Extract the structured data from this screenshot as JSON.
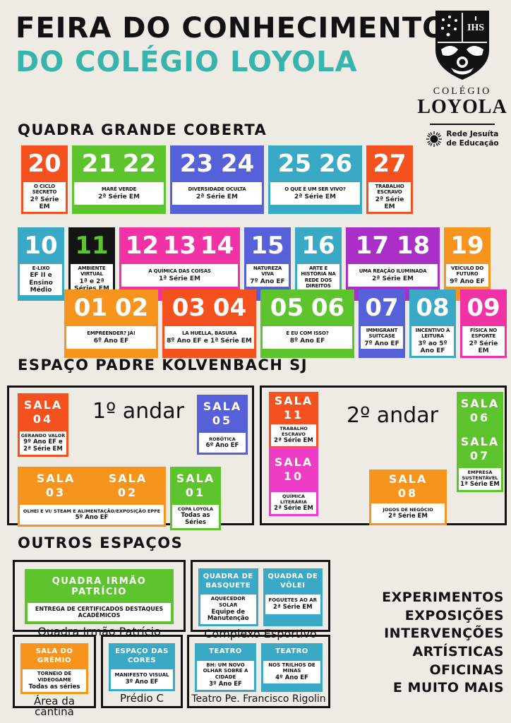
{
  "header": {
    "title1": "FEIRA DO CONHECIMENTO",
    "title2": "DO COLÉGIO LOYOLA",
    "title2_color": "#38b4ac"
  },
  "logo": {
    "ihs": "IHS",
    "school1": "COLÉGIO",
    "school2": "LOYOLA",
    "net1": "Rede Jesuíta",
    "net2": "de Educação"
  },
  "sections": {
    "quadra": "QUADRA GRANDE COBERTA",
    "kolvenbach": "ESPAÇO PADRE KOLVENBACH SJ",
    "outros": "OUTROS ESPAÇOS"
  },
  "quadra": {
    "rows": [
      {
        "stands": [
          {
            "numbers": [
              "20"
            ],
            "title": "O CICLO SECRETO",
            "grade": "2ª Série EM",
            "color": "#f4511e"
          },
          {
            "numbers": [
              "21",
              "22"
            ],
            "title": "MARÉ VERDE",
            "grade": "2ª Série EM",
            "color": "#5ec42d"
          },
          {
            "numbers": [
              "23",
              "24"
            ],
            "title": "DIVERSIDADE OCULTA",
            "grade": "2ª Série EM",
            "color": "#5560d9"
          },
          {
            "numbers": [
              "25",
              "26"
            ],
            "title": "O QUE É UM SER VIVO?",
            "grade": "2ª Série EM",
            "color": "#3aa9c5"
          },
          {
            "numbers": [
              "27"
            ],
            "title": "TRABALHO ESCRAVO",
            "grade": "2ª Série EM",
            "color": "#f4511e"
          }
        ]
      },
      {
        "stands": [
          {
            "numbers": [
              "10"
            ],
            "title": "E-LIXO",
            "grade": "EF II e Ensino Médio",
            "color": "#3aa9c5"
          },
          {
            "numbers": [
              "11"
            ],
            "title": "AMBIENTE VIRTUAL",
            "grade": "1ª e 2ª Séries EM",
            "color": "#141414",
            "num_color": "#5ec42d"
          },
          {
            "numbers": [
              "12",
              "13",
              "14"
            ],
            "title": "A QUÍMICA DAS COISAS",
            "grade": "1ª Série EM",
            "color": "#f032a4"
          },
          {
            "numbers": [
              "15"
            ],
            "title": "NATUREZA VIVA",
            "grade": "7º Ano EF",
            "color": "#5560d9"
          },
          {
            "numbers": [
              "16"
            ],
            "title": "ARTE E HISTÓRIA NA REDE DOS DIREITOS",
            "grade": "8º Ano EF",
            "color": "#3aa9c5"
          },
          {
            "numbers": [
              "17",
              "18"
            ],
            "title": "UMA REAÇÃO ILUMINADA",
            "grade": "2ª Série EM",
            "color": "#a92fc6"
          },
          {
            "numbers": [
              "19"
            ],
            "title": "VEÍCULO DO FUTURO",
            "grade": "9º Ano EF",
            "color": "#f7941d"
          }
        ]
      },
      {
        "stands": [
          {
            "numbers": [
              "01",
              "02"
            ],
            "title": "EMPREENDER? JÁ!",
            "grade": "6º Ano EF",
            "color": "#f7941d"
          },
          {
            "numbers": [
              "03",
              "04"
            ],
            "title": "LA HUELLA, BASURA",
            "grade": "8º Ano EF e 1ª Série EM",
            "color": "#f4511e"
          },
          {
            "numbers": [
              "05",
              "06"
            ],
            "title": "E EU COM ISSO?",
            "grade": "8º Ano EF",
            "color": "#5ec42d"
          },
          {
            "numbers": [
              "07"
            ],
            "title": "IMMIGRANT SUITCASE",
            "grade": "7º Ano EF",
            "color": "#5560d9"
          },
          {
            "numbers": [
              "08"
            ],
            "title": "INCENTIVO À LEITURA",
            "grade": "3º ao 5º Ano EF",
            "color": "#3aa9c5"
          },
          {
            "numbers": [
              "09"
            ],
            "title": "FÍSICA NO ESPORTE",
            "grade": "2ª Série EM",
            "color": "#f032a4"
          }
        ]
      }
    ]
  },
  "kolvenbach": {
    "sala_word": "SALA",
    "floor1": {
      "label": "1º andar",
      "sala04": {
        "num": "04",
        "title": "GERANDO VALOR",
        "grade": "9º Ano EF e 2ª Série EM",
        "color": "#f4511e"
      },
      "sala05": {
        "num": "05",
        "title": "ROBÓTICA",
        "grade": "6º Ano EF",
        "color": "#5560d9"
      },
      "sala0302": {
        "num1": "03",
        "num2": "02",
        "title": "OLHEI E VI/ STEAM E ALIMENTAÇÃO/EXPOSIÇÃO EPFE",
        "grade": "5º Ano EF",
        "color": "#f7941d"
      },
      "sala01": {
        "num": "01",
        "title": "COPA LOYOLA",
        "grade": "Todas as Séries",
        "color": "#5ec42d"
      }
    },
    "floor2": {
      "label": "2º andar",
      "sala11": {
        "num": "11",
        "title": "TRABALHO ESCRAVO",
        "grade": "2ª Série EM",
        "color": "#f4511e"
      },
      "sala0607": {
        "num1": "06",
        "num2": "07",
        "title": "EMPRESA SUSTENTÁVEL",
        "grade": "1ª Série EM",
        "color": "#5ec42d"
      },
      "sala10": {
        "num": "10",
        "title": "QUÍMICA LITERÁRIA",
        "grade": "2ª Série EM",
        "color": "#ee3cc4"
      },
      "sala08": {
        "num": "08",
        "title": "JOGOS DE NEGÓCIO",
        "grade": "2ª Série EM",
        "color": "#f7941d"
      }
    }
  },
  "outros": {
    "patricio": {
      "header": "QUADRA IRMÃO PATRÍCIO",
      "title": "ENTREGA DE CERTIFICADOS DESTAQUES ACADÊMICOS",
      "caption": "Quadra Irmão Patrício",
      "color": "#5ec42d"
    },
    "esportivo": {
      "caption": "Complexo Esportivo",
      "cards": [
        {
          "header": "QUADRA DE BASQUETE",
          "title": "AQUECEDOR SOLAR",
          "grade": "Equipe de Manutenção",
          "color": "#3aa9c5"
        },
        {
          "header": "QUADRA DE VÔLEI",
          "title": "FOGUETES AO AR",
          "grade": "2ª Série EM",
          "color": "#3aa9c5"
        }
      ]
    },
    "gremio": {
      "header": "SALA DO GRÊMIO",
      "title": "TORNEIO DE VIDEOGAME",
      "grade": "Todas as séries",
      "caption": "Área da cantina",
      "color": "#f7941d"
    },
    "cores": {
      "header": "ESPAÇO DAS CORES",
      "title": "MANIFESTO VISUAL",
      "grade": "3º Ano EF",
      "caption": "Prédio C",
      "color": "#3aa9c5"
    },
    "teatro": {
      "caption": "Teatro Pe. Francisco Rigolin",
      "cards": [
        {
          "header": "TEATRO",
          "title": "BH: UM NOVO OLHAR SOBRE A CIDADE",
          "grade": "3º Ano EF",
          "color": "#3aa9c5"
        },
        {
          "header": "TEATRO",
          "title": "NOS TRILHOS DE MINAS",
          "grade": "4º Ano EF",
          "color": "#3aa9c5"
        }
      ]
    }
  },
  "highlights": {
    "lines": [
      "EXPERIMENTOS",
      "EXPOSIÇÕES",
      "INTERVENÇÕES ARTÍSTICAS",
      "OFICINAS",
      "E MUITO MAIS"
    ]
  }
}
